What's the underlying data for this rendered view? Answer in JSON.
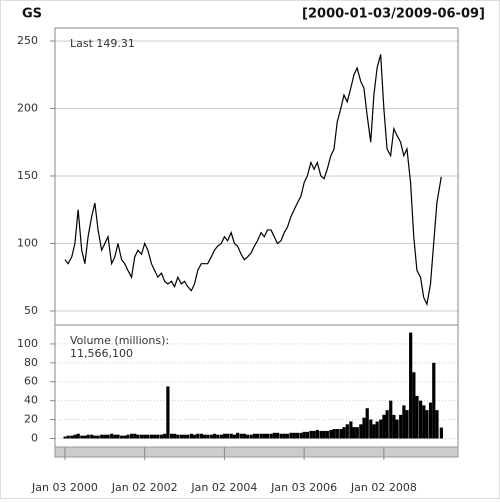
{
  "chart_data": [
    {
      "type": "line",
      "title": "GS",
      "subtitle": "[2000-01-03/2009-06-09]",
      "annotation": "Last 149.31",
      "color": "#000000",
      "grid": true,
      "xlim": [
        1999.75,
        2009.86
      ],
      "xticks": [
        {
          "value": 2000.0,
          "label": "Jan 03 2000"
        },
        {
          "value": 2002.0,
          "label": "Jan 02 2002"
        },
        {
          "value": 2004.0,
          "label": "Jan 02 2004"
        },
        {
          "value": 2006.0,
          "label": "Jan 03 2006"
        },
        {
          "value": 2008.0,
          "label": "Jan 02 2008"
        }
      ],
      "ylim": [
        39.6,
        259.6
      ],
      "yticks": [
        50,
        100,
        150,
        200,
        250
      ],
      "x": [
        2000.0,
        2000.08,
        2000.17,
        2000.25,
        2000.33,
        2000.42,
        2000.5,
        2000.58,
        2000.67,
        2000.75,
        2000.83,
        2000.92,
        2001.0,
        2001.08,
        2001.17,
        2001.25,
        2001.33,
        2001.42,
        2001.5,
        2001.58,
        2001.67,
        2001.75,
        2001.83,
        2001.92,
        2002.0,
        2002.08,
        2002.17,
        2002.25,
        2002.33,
        2002.42,
        2002.5,
        2002.58,
        2002.67,
        2002.75,
        2002.83,
        2002.92,
        2003.0,
        2003.08,
        2003.17,
        2003.25,
        2003.33,
        2003.42,
        2003.5,
        2003.58,
        2003.67,
        2003.75,
        2003.83,
        2003.92,
        2004.0,
        2004.08,
        2004.17,
        2004.25,
        2004.33,
        2004.42,
        2004.5,
        2004.58,
        2004.67,
        2004.75,
        2004.83,
        2004.92,
        2005.0,
        2005.08,
        2005.17,
        2005.25,
        2005.33,
        2005.42,
        2005.5,
        2005.58,
        2005.67,
        2005.75,
        2005.83,
        2005.92,
        2006.0,
        2006.08,
        2006.17,
        2006.25,
        2006.33,
        2006.42,
        2006.5,
        2006.58,
        2006.67,
        2006.75,
        2006.83,
        2006.92,
        2007.0,
        2007.08,
        2007.17,
        2007.25,
        2007.33,
        2007.42,
        2007.5,
        2007.58,
        2007.67,
        2007.75,
        2007.83,
        2007.92,
        2008.0,
        2008.08,
        2008.17,
        2008.25,
        2008.33,
        2008.42,
        2008.5,
        2008.58,
        2008.67,
        2008.75,
        2008.83,
        2008.92,
        2009.0,
        2009.08,
        2009.17,
        2009.25,
        2009.33,
        2009.44
      ],
      "values": [
        88,
        85,
        90,
        100,
        125,
        95,
        85,
        105,
        120,
        130,
        110,
        95,
        100,
        105,
        85,
        90,
        100,
        88,
        85,
        80,
        75,
        90,
        95,
        92,
        100,
        95,
        85,
        80,
        75,
        78,
        72,
        70,
        72,
        68,
        75,
        70,
        72,
        68,
        65,
        70,
        80,
        85,
        85,
        85,
        90,
        95,
        98,
        100,
        105,
        102,
        108,
        100,
        98,
        92,
        88,
        90,
        93,
        98,
        102,
        108,
        105,
        110,
        110,
        105,
        100,
        102,
        108,
        112,
        120,
        125,
        130,
        135,
        145,
        150,
        160,
        155,
        160,
        150,
        148,
        155,
        165,
        170,
        190,
        200,
        210,
        205,
        215,
        225,
        230,
        220,
        215,
        195,
        175,
        210,
        230,
        240,
        200,
        170,
        165,
        185,
        180,
        175,
        165,
        170,
        145,
        105,
        80,
        75,
        60,
        55,
        70,
        100,
        130,
        149.31
      ]
    },
    {
      "type": "bar",
      "title": "Volume (millions):",
      "annotation": "11,566,100",
      "color": "#000000",
      "grid": true,
      "ylim": [
        -9,
        120
      ],
      "yticks": [
        0,
        20,
        40,
        60,
        80,
        100
      ],
      "values": [
        2,
        3,
        3,
        4,
        5,
        3,
        3,
        4,
        4,
        3,
        3,
        4,
        4,
        4,
        5,
        4,
        4,
        3,
        3,
        4,
        5,
        5,
        4,
        4,
        4,
        4,
        4,
        4,
        4,
        4,
        5,
        55,
        5,
        5,
        4,
        4,
        4,
        4,
        5,
        4,
        5,
        5,
        4,
        4,
        4,
        5,
        4,
        4,
        5,
        5,
        5,
        4,
        6,
        5,
        5,
        4,
        4,
        5,
        5,
        5,
        5,
        5,
        5,
        6,
        6,
        5,
        5,
        5,
        6,
        6,
        6,
        6,
        7,
        7,
        8,
        8,
        9,
        8,
        8,
        8,
        9,
        10,
        10,
        10,
        12,
        15,
        18,
        12,
        12,
        15,
        22,
        32,
        20,
        15,
        18,
        20,
        25,
        30,
        40,
        25,
        20,
        25,
        35,
        30,
        112,
        70,
        45,
        40,
        35,
        30,
        38,
        80,
        30,
        11.5661
      ]
    }
  ]
}
